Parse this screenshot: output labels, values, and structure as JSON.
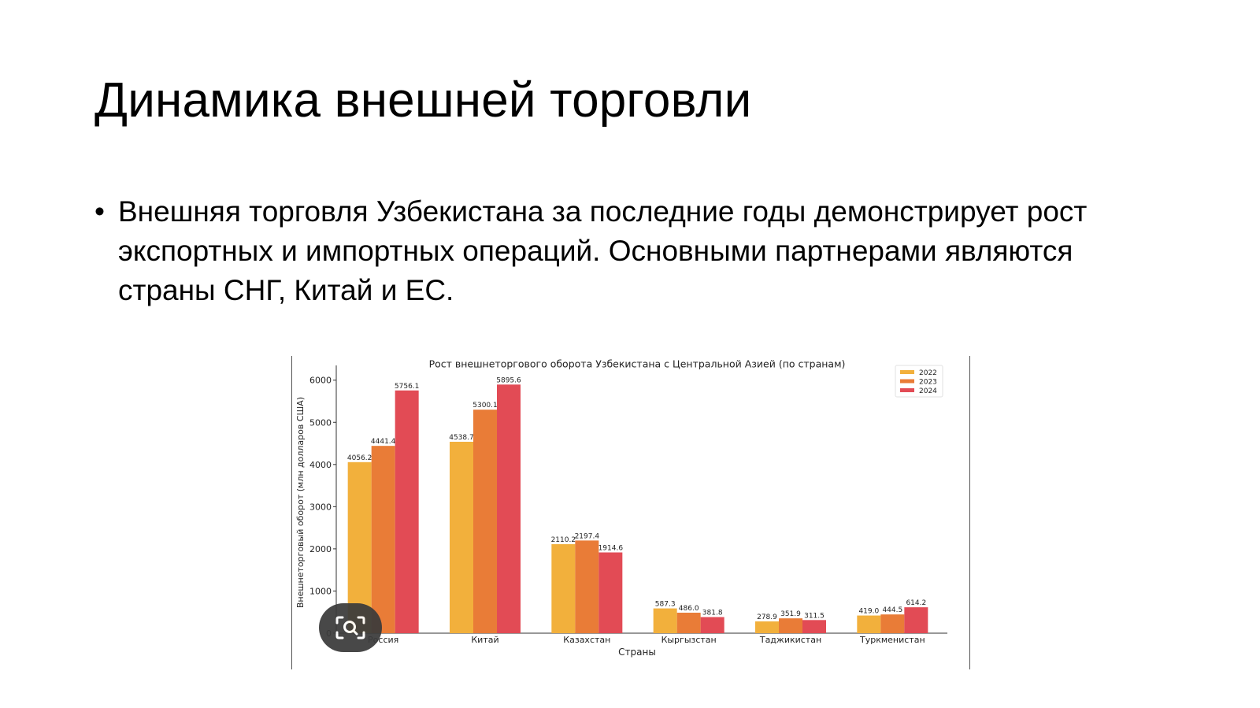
{
  "slide": {
    "title": "Динамика внешней торговли",
    "bullet": "Внешняя торговля Узбекистана за последние годы демонстрирует рост экспортных и импортных операций. Основными партнерами являются страны СНГ, Китай и ЕС."
  },
  "overlay": {
    "icon": "screen-search-icon",
    "color": "#3b3b3b"
  },
  "chart_data": {
    "type": "bar",
    "title": "Рост внешнеторгового оборота Узбекистана с Центральной Азией (по странам)",
    "xlabel": "Страны",
    "ylabel": "Внешнеторговый оборот (млн долларов США)",
    "categories": [
      "Россия",
      "Китай",
      "Казахстан",
      "Кыргызстан",
      "Таджикистан",
      "Туркменистан"
    ],
    "series": [
      {
        "name": "2022",
        "color": "#f2b03c",
        "values": [
          4056.2,
          4538.7,
          2110.2,
          587.3,
          278.9,
          419.0
        ]
      },
      {
        "name": "2023",
        "color": "#e97c37",
        "values": [
          4441.4,
          5300.1,
          2197.4,
          486.0,
          351.9,
          444.5
        ]
      },
      {
        "name": "2024",
        "color": "#e24b55",
        "values": [
          5756.1,
          5895.6,
          1914.6,
          381.8,
          311.5,
          614.2
        ]
      }
    ],
    "data_labels": [
      [
        "4056.2",
        "4538.7",
        "2110.2",
        "587.3",
        "278.9",
        "419.0"
      ],
      [
        "4441.4",
        "5300.1",
        "2197.4",
        "486.0",
        "351.9",
        "444.5"
      ],
      [
        "5756.1",
        "5895.6",
        "1914.6",
        "381.8",
        "311.5",
        "614.2"
      ]
    ],
    "yticks": [
      0,
      1000,
      2000,
      3000,
      4000,
      5000,
      6000
    ],
    "ytick_labels": [
      "0",
      "1000",
      "2000",
      "3000",
      "4000",
      "5000",
      "6000"
    ],
    "ylim": [
      0,
      6200
    ],
    "legend_position": "top-right",
    "grid": false
  }
}
